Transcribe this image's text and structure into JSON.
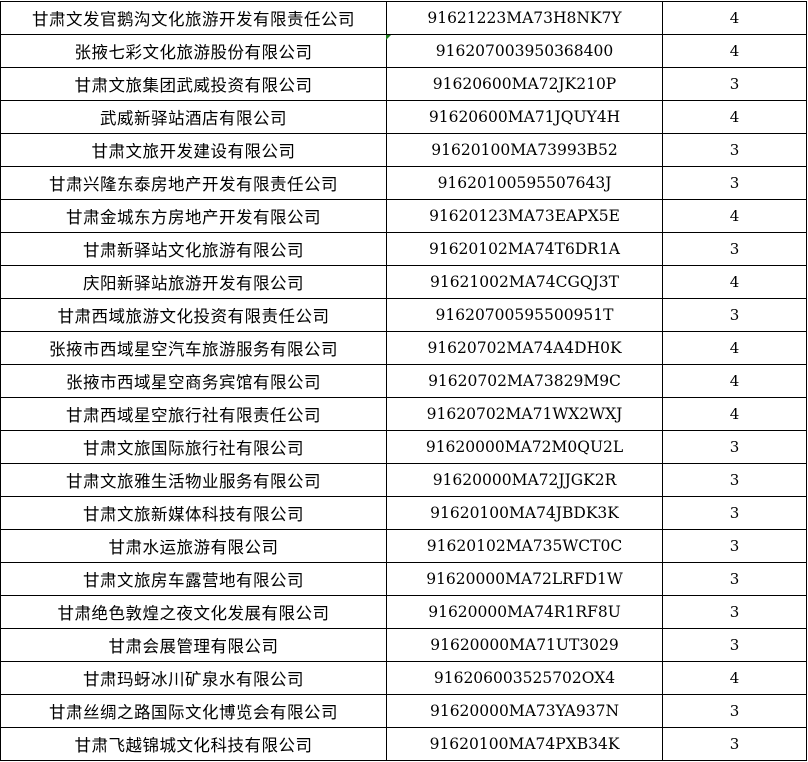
{
  "rows": [
    {
      "name": "甘肃文发官鹅沟文化旅游开发有限责任公司",
      "code": "91621223MA73H8NK7Y",
      "value": "4"
    },
    {
      "name": "张掖七彩文化旅游股份有限公司",
      "code": "916207003950368400",
      "value": "4"
    },
    {
      "name": "甘肃文旅集团武威投资有限公司",
      "code": "91620600MA72JK210P",
      "value": "3"
    },
    {
      "name": "武威新驿站酒店有限公司",
      "code": "91620600MA71JQUY4H",
      "value": "4"
    },
    {
      "name": "甘肃文旅开发建设有限公司",
      "code": "91620100MA73993B52",
      "value": "3"
    },
    {
      "name": "甘肃兴隆东泰房地产开发有限责任公司",
      "code": "91620100595507643J",
      "value": "3"
    },
    {
      "name": "甘肃金城东方房地产开发有限公司",
      "code": "91620123MA73EAPX5E",
      "value": "4"
    },
    {
      "name": "甘肃新驿站文化旅游有限公司",
      "code": "91620102MA74T6DR1A",
      "value": "3"
    },
    {
      "name": "庆阳新驿站旅游开发有限公司",
      "code": "91621002MA74CGQJ3T",
      "value": "4"
    },
    {
      "name": "甘肃西域旅游文化投资有限责任公司",
      "code": "91620700595500951T",
      "value": "3"
    },
    {
      "name": "张掖市西域星空汽车旅游服务有限公司",
      "code": "91620702MA74A4DH0K",
      "value": "4"
    },
    {
      "name": "张掖市西域星空商务宾馆有限公司",
      "code": "91620702MA73829M9C",
      "value": "4"
    },
    {
      "name": "甘肃西域星空旅行社有限责任公司",
      "code": "91620702MA71WX2WXJ",
      "value": "4"
    },
    {
      "name": "甘肃文旅国际旅行社有限公司",
      "code": "91620000MA72M0QU2L",
      "value": "3"
    },
    {
      "name": "甘肃文旅雅生活物业服务有限公司",
      "code": "91620000MA72JJGK2R",
      "value": "3"
    },
    {
      "name": "甘肃文旅新媒体科技有限公司",
      "code": "91620100MA74JBDK3K",
      "value": "3"
    },
    {
      "name": "甘肃水运旅游有限公司",
      "code": "91620102MA735WCT0C",
      "value": "3"
    },
    {
      "name": "甘肃文旅房车露营地有限公司",
      "code": "91620000MA72LRFD1W",
      "value": "3"
    },
    {
      "name": "甘肃绝色敦煌之夜文化发展有限公司",
      "code": "91620000MA74R1RF8U",
      "value": "3"
    },
    {
      "name": "甘肃会展管理有限公司",
      "code": "91620000MA71UT3029",
      "value": "3"
    },
    {
      "name": "甘肃玛蚜冰川矿泉水有限公司",
      "code": "916206003525702OX4",
      "value": "4"
    },
    {
      "name": "甘肃丝绸之路国际文化博览会有限公司",
      "code": "91620000MA73YA937N",
      "value": "3"
    },
    {
      "name": "甘肃飞越锦城文化科技有限公司",
      "code": "91620100MA74PXB34K",
      "value": "3"
    }
  ]
}
